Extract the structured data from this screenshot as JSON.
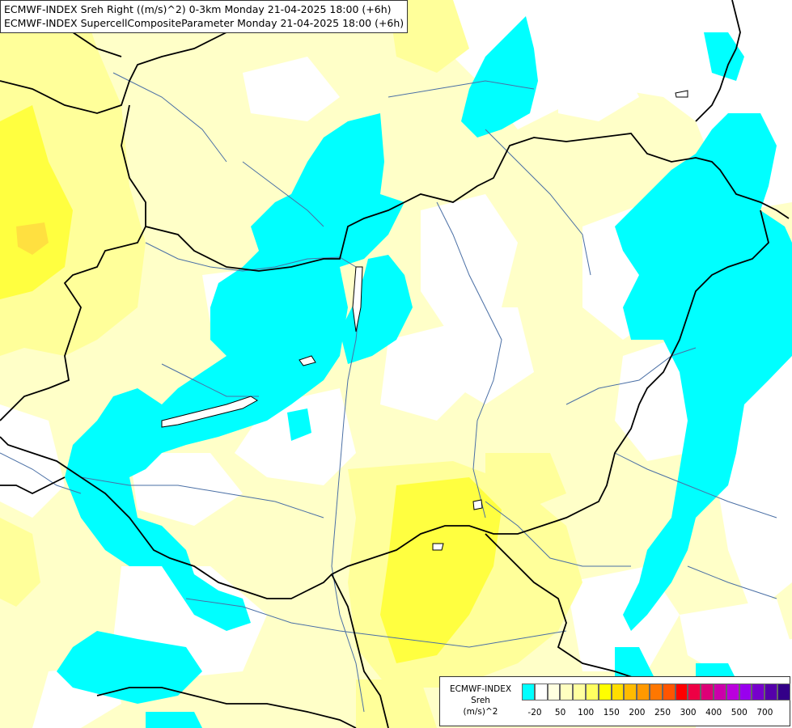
{
  "header": {
    "line1": "ECMWF-INDEX Sreh Right ((m/s)^2) 0-3km Monday 21-04-2025 18:00 (+6h)",
    "line2": "ECMWF-INDEX SupercellCompositeParameter Monday 21-04-2025 18:00 (+6h)"
  },
  "legend": {
    "title_line1": "ECMWF-INDEX",
    "title_line2": "Sreh",
    "title_line3": "(m/s)^2",
    "swatch_colors": [
      "#00ffff",
      "#ffffff",
      "#ffffe0",
      "#ffffc0",
      "#ffffa0",
      "#ffff60",
      "#ffff00",
      "#ffdd00",
      "#ffbb00",
      "#ff9900",
      "#ff7700",
      "#ff5500",
      "#ff0000",
      "#ee0044",
      "#dd0077",
      "#cc00aa",
      "#bb00dd",
      "#9900ee",
      "#7700cc",
      "#5500aa",
      "#330088"
    ],
    "ticks": [
      "-20",
      "50",
      "100",
      "150",
      "200",
      "250",
      "300",
      "400",
      "500",
      "700"
    ]
  },
  "map": {
    "colors": {
      "cyan": "#00ffff",
      "white": "#ffffff",
      "pale_yellow": "#ffffc8",
      "light_yellow": "#ffff9a",
      "yellow": "#ffff40",
      "gold": "#ffe040",
      "border": "#000000",
      "river": "#4a6fa5"
    }
  }
}
